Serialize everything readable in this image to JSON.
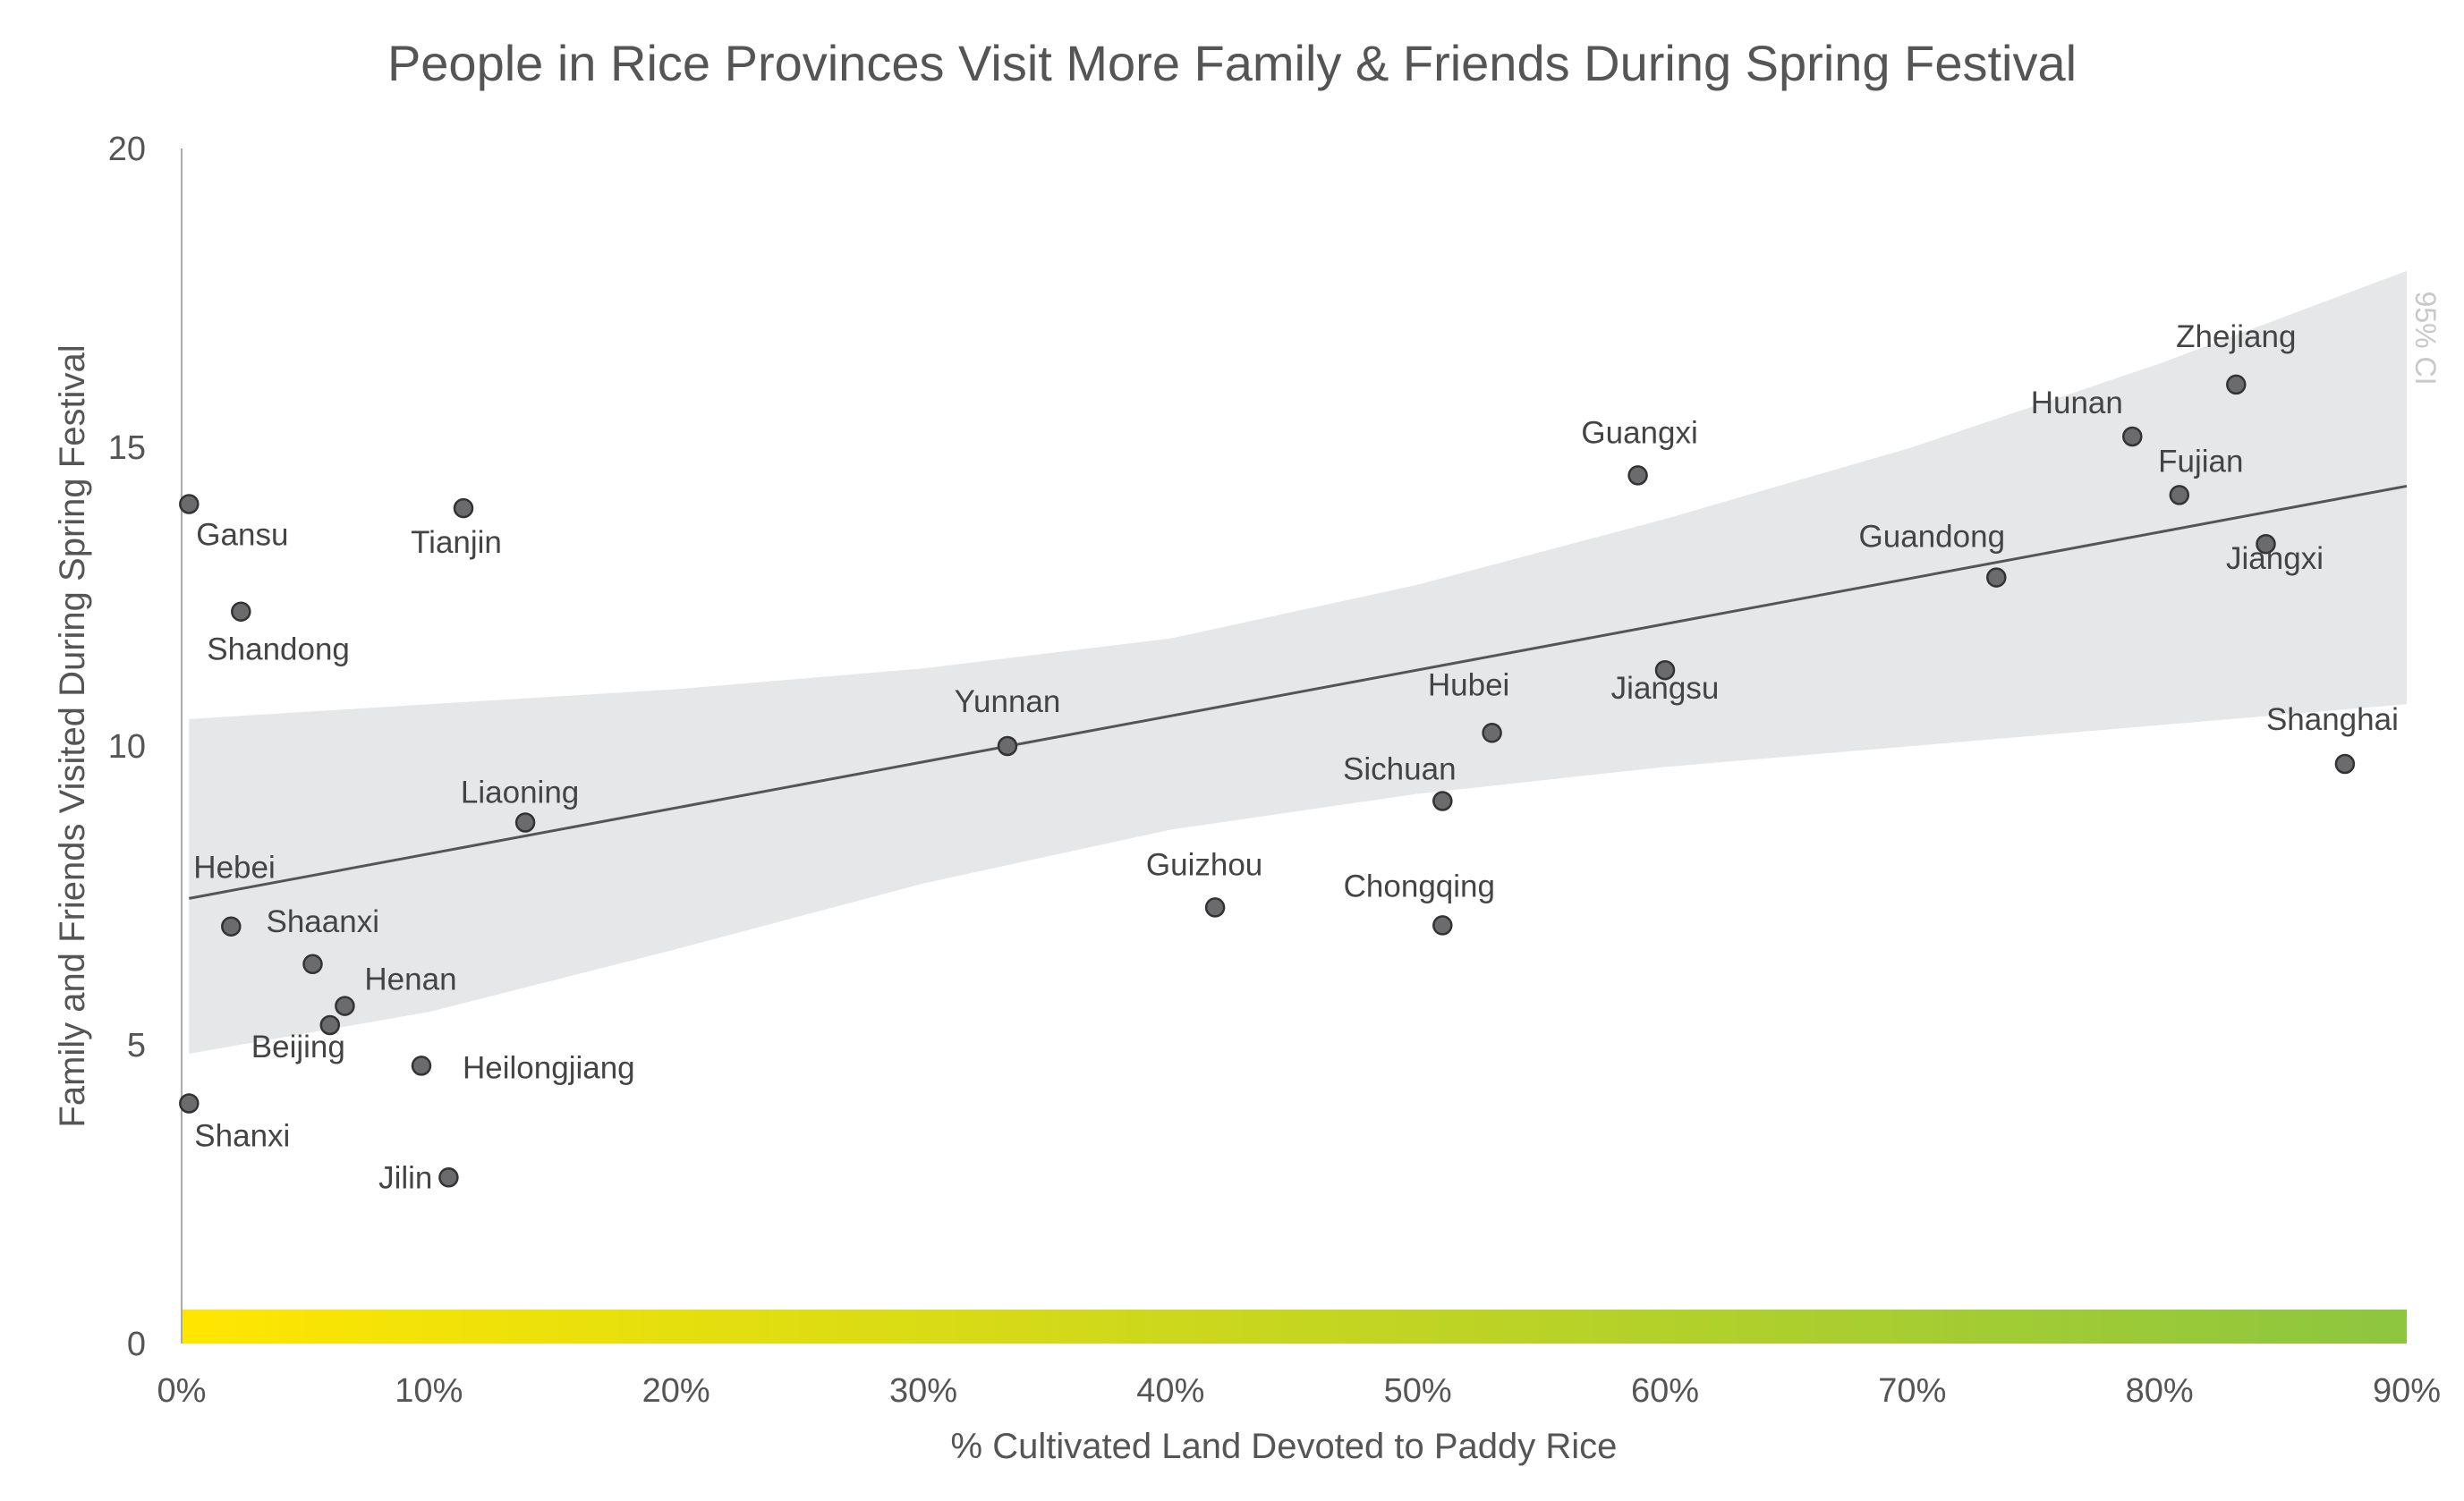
{
  "chart_data": {
    "type": "scatter",
    "title": "People in Rice Provinces Visit More Family & Friends During Spring Festival",
    "xlabel": "% Cultivated Land Devoted to Paddy Rice",
    "ylabel": "Family and Friends Visited During Spring Festival",
    "xlim": [
      0,
      90
    ],
    "ylim": [
      0,
      20
    ],
    "x_ticks": [
      "0%",
      "10%",
      "20%",
      "30%",
      "40%",
      "50%",
      "60%",
      "70%",
      "80%",
      "90%"
    ],
    "y_ticks": [
      "0",
      "5",
      "10",
      "15",
      "20"
    ],
    "grid": false,
    "ci_label": "95% CI",
    "colors": {
      "point_fill": "#6b6b6d",
      "point_stroke": "#333333",
      "trend_line": "#555555",
      "ci_band": "#e6e7e8",
      "gradient_start": "#ffe600",
      "gradient_end": "#8dc63f",
      "axis": "#aaaaaa",
      "text": "#555555"
    },
    "trend_line": {
      "x": [
        0.3,
        90
      ],
      "y": [
        7.45,
        14.35
      ]
    },
    "ci_band": {
      "x": [
        0.3,
        10,
        20,
        30,
        40,
        50,
        60,
        70,
        80,
        90
      ],
      "upper": [
        10.45,
        10.7,
        10.95,
        11.3,
        11.8,
        12.7,
        13.8,
        15.0,
        16.4,
        17.95
      ],
      "lower": [
        4.85,
        5.55,
        6.6,
        7.7,
        8.6,
        9.2,
        9.65,
        10.0,
        10.35,
        10.7
      ]
    },
    "points": [
      {
        "name": "Gansu",
        "x": 0.3,
        "y": 14.05
      },
      {
        "name": "Tianjin",
        "x": 11.4,
        "y": 13.98
      },
      {
        "name": "Shandong",
        "x": 2.4,
        "y": 12.25
      },
      {
        "name": "Liaoning",
        "x": 13.9,
        "y": 8.72
      },
      {
        "name": "Hebei",
        "x": 2.0,
        "y": 6.98
      },
      {
        "name": "Shaanxi",
        "x": 5.3,
        "y": 6.35
      },
      {
        "name": "Henan",
        "x": 6.6,
        "y": 5.65
      },
      {
        "name": "Beijing",
        "x": 6.0,
        "y": 5.33
      },
      {
        "name": "Heilongjiang",
        "x": 9.7,
        "y": 4.65
      },
      {
        "name": "Shanxi",
        "x": 0.3,
        "y": 4.02
      },
      {
        "name": "Jilin",
        "x": 10.8,
        "y": 2.78
      },
      {
        "name": "Yunnan",
        "x": 33.4,
        "y": 10.0
      },
      {
        "name": "Guizhou",
        "x": 41.8,
        "y": 7.3
      },
      {
        "name": "Sichuan",
        "x": 51.0,
        "y": 9.08
      },
      {
        "name": "Chongqing",
        "x": 51.0,
        "y": 7.0
      },
      {
        "name": "Hubei",
        "x": 53.0,
        "y": 10.22
      },
      {
        "name": "Guangxi",
        "x": 58.9,
        "y": 14.53
      },
      {
        "name": "Jiangsu",
        "x": 60.0,
        "y": 11.27
      },
      {
        "name": "Guandong",
        "x": 73.4,
        "y": 12.82
      },
      {
        "name": "Hunan",
        "x": 78.9,
        "y": 15.18
      },
      {
        "name": "Fujian",
        "x": 80.8,
        "y": 14.2
      },
      {
        "name": "Zhejiang",
        "x": 83.1,
        "y": 16.05
      },
      {
        "name": "Jiangxi",
        "x": 84.3,
        "y": 13.38
      },
      {
        "name": "Shanghai",
        "x": 87.5,
        "y": 9.7
      }
    ]
  }
}
